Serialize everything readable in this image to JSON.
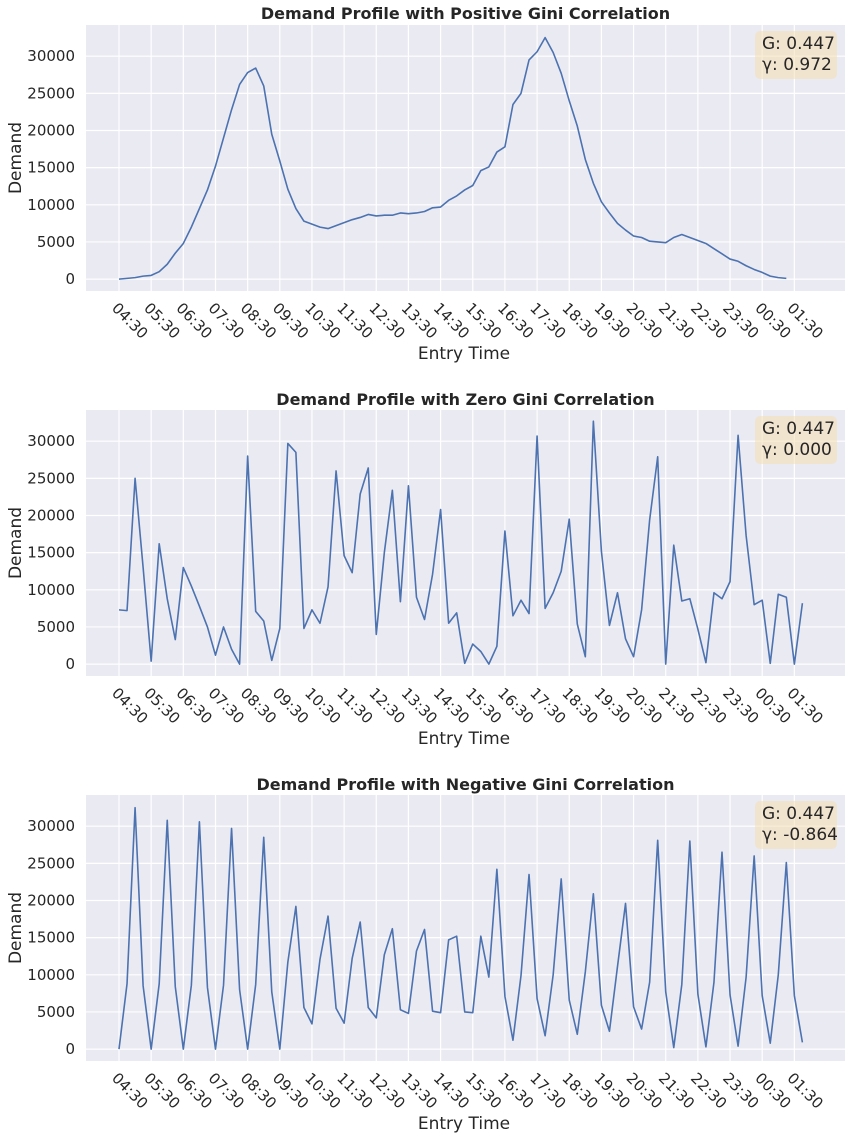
{
  "chart_data": [
    {
      "type": "line",
      "title": "Demand Profile with Positive Gini Correlation",
      "xlabel": "Entry Time",
      "ylabel": "Demand",
      "ylim": [
        -1600,
        34200
      ],
      "y_ticks": [
        0,
        5000,
        10000,
        15000,
        20000,
        25000,
        30000
      ],
      "x_tick_labels": [
        "04:30",
        "05:30",
        "06:30",
        "07:30",
        "08:30",
        "09:30",
        "10:30",
        "11:30",
        "12:30",
        "13:30",
        "14:30",
        "15:30",
        "16:30",
        "17:30",
        "18:30",
        "19:30",
        "20:30",
        "21:30",
        "22:30",
        "23:30",
        "00:30",
        "01:30"
      ],
      "annotation": {
        "g_label": "G: 0.447",
        "gamma_label": "γ: 0.972"
      },
      "grid": true,
      "series": [
        {
          "color": "#4c72b0",
          "values": [
            0,
            100,
            200,
            400,
            500,
            1000,
            2000,
            3500,
            4800,
            7000,
            9500,
            12000,
            15200,
            19000,
            22800,
            26200,
            27800,
            28400,
            26000,
            19500,
            15900,
            12100,
            9500,
            7800,
            7400,
            7000,
            6800,
            7200,
            7600,
            8000,
            8300,
            8700,
            8500,
            8600,
            8600,
            8900,
            8800,
            8900,
            9100,
            9600,
            9700,
            10600,
            11200,
            12000,
            12600,
            14600,
            15100,
            17100,
            17800,
            23500,
            25000,
            29500,
            30600,
            32500,
            30500,
            27700,
            24000,
            20600,
            16100,
            12900,
            10400,
            8900,
            7500,
            6600,
            5800,
            5600,
            5100,
            5000,
            4900,
            5600,
            6000,
            5600,
            5200,
            4800,
            4100,
            3400,
            2700,
            2400,
            1800,
            1300,
            900,
            400,
            200,
            100
          ]
        }
      ]
    },
    {
      "type": "line",
      "title": "Demand Profile with Zero Gini Correlation",
      "xlabel": "Entry Time",
      "ylabel": "Demand",
      "ylim": [
        -1600,
        34200
      ],
      "y_ticks": [
        0,
        5000,
        10000,
        15000,
        20000,
        25000,
        30000
      ],
      "x_tick_labels": [
        "04:30",
        "05:30",
        "06:30",
        "07:30",
        "08:30",
        "09:30",
        "10:30",
        "11:30",
        "12:30",
        "13:30",
        "14:30",
        "15:30",
        "16:30",
        "17:30",
        "18:30",
        "19:30",
        "20:30",
        "21:30",
        "22:30",
        "23:30",
        "00:30",
        "01:30"
      ],
      "annotation": {
        "g_label": "G: 0.447",
        "gamma_label": "γ: 0.000"
      },
      "grid": true,
      "series": [
        {
          "color": "#4c72b0",
          "values": [
            7300,
            7200,
            25000,
            13000,
            400,
            16200,
            8800,
            3300,
            13000,
            10500,
            7800,
            5000,
            1200,
            5000,
            2000,
            0,
            28000,
            7100,
            5800,
            500,
            4800,
            29700,
            28500,
            4800,
            7300,
            5500,
            10400,
            26000,
            14600,
            12300,
            22900,
            26400,
            4000,
            15000,
            23400,
            8400,
            24000,
            9000,
            6000,
            12100,
            20800,
            5500,
            6900,
            100,
            2700,
            1700,
            0,
            2400,
            17900,
            6500,
            8600,
            6800,
            30700,
            7500,
            9600,
            12500,
            19500,
            5400,
            1000,
            32700,
            15200,
            5200,
            9600,
            3400,
            1000,
            7300,
            19400,
            27900,
            0,
            16000,
            8500,
            8800,
            4700,
            200,
            9600,
            8800,
            11100,
            30800,
            17300,
            8000,
            8600,
            100,
            9400,
            9000,
            0,
            8200
          ]
        }
      ]
    },
    {
      "type": "line",
      "title": "Demand Profile with Negative Gini Correlation",
      "xlabel": "Entry Time",
      "ylabel": "Demand",
      "ylim": [
        -1600,
        34200
      ],
      "y_ticks": [
        0,
        5000,
        10000,
        15000,
        20000,
        25000,
        30000
      ],
      "x_tick_labels": [
        "04:30",
        "05:30",
        "06:30",
        "07:30",
        "08:30",
        "09:30",
        "10:30",
        "11:30",
        "12:30",
        "13:30",
        "14:30",
        "15:30",
        "16:30",
        "17:30",
        "18:30",
        "19:30",
        "20:30",
        "21:30",
        "22:30",
        "23:30",
        "00:30",
        "01:30"
      ],
      "annotation": {
        "g_label": "G: 0.447",
        "gamma_label": "γ: -0.864"
      },
      "grid": true,
      "series": [
        {
          "color": "#4c72b0",
          "values": [
            0,
            8800,
            32500,
            8500,
            0,
            8800,
            30800,
            8400,
            0,
            8600,
            30600,
            8300,
            0,
            8600,
            29700,
            8000,
            0,
            8700,
            28500,
            7700,
            0,
            11700,
            19200,
            5600,
            3400,
            12100,
            17900,
            5500,
            3500,
            12200,
            17100,
            5600,
            4200,
            12700,
            16200,
            5300,
            4800,
            13200,
            16100,
            5100,
            4900,
            14700,
            15200,
            5000,
            4900,
            15200,
            9700,
            24200,
            7100,
            1200,
            9900,
            23500,
            6800,
            1800,
            10000,
            22900,
            6600,
            2000,
            10400,
            20900,
            5900,
            2400,
            11100,
            19600,
            5700,
            2700,
            9000,
            28100,
            7700,
            200,
            8700,
            28000,
            7400,
            300,
            9000,
            26500,
            7300,
            400,
            9700,
            26000,
            7200,
            800,
            10000,
            25100,
            7200,
            900
          ]
        }
      ]
    }
  ]
}
